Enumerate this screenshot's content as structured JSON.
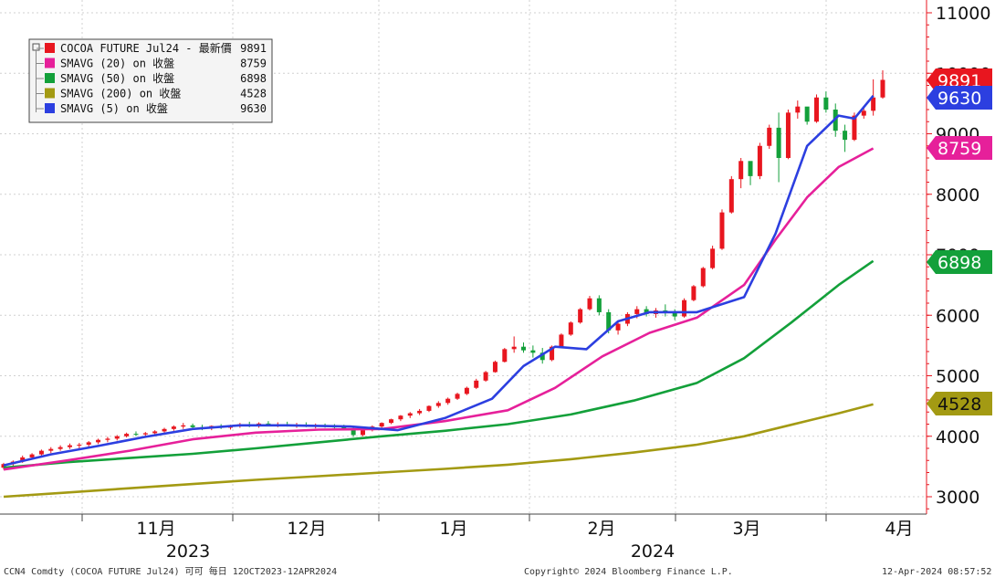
{
  "chart_data": {
    "type": "candlestick",
    "y_axis": {
      "ticks": [
        3000,
        4000,
        5000,
        6000,
        7000,
        8000,
        9000,
        10000,
        11000
      ],
      "range": [
        2700,
        11200
      ],
      "position": "right"
    },
    "x_axis": {
      "months": [
        "11月",
        "12月",
        "1月",
        "2月",
        "3月",
        "4月"
      ],
      "years": [
        "2023",
        "2024"
      ]
    },
    "grid": true,
    "legend": {
      "placement": "top-left",
      "entries": [
        {
          "label": "COCOA FUTURE Jul24 - 最新價",
          "value": "9891",
          "color": "#e8161f"
        },
        {
          "label": "SMAVG (20)  on 收盤",
          "value": "8759",
          "color": "#e6209a"
        },
        {
          "label": "SMAVG (50)  on 收盤",
          "value": "6898",
          "color": "#13a03a"
        },
        {
          "label": "SMAVG (200)  on 收盤",
          "value": "4528",
          "color": "#a39a13"
        },
        {
          "label": "SMAVG (5)  on 收盤",
          "value": "9630",
          "color": "#2c3fe0"
        }
      ]
    },
    "right_tags": [
      {
        "value": 9891,
        "label": "9891",
        "color": "#e8161f",
        "text_dark": false
      },
      {
        "value": 9630,
        "label": "9630",
        "color": "#2c3fe0",
        "text_dark": false
      },
      {
        "value": 8759,
        "label": "8759",
        "color": "#e6209a",
        "text_dark": false
      },
      {
        "value": 6898,
        "label": "6898",
        "color": "#13a03a",
        "text_dark": false
      },
      {
        "value": 4528,
        "label": "4528",
        "color": "#a39a13",
        "text_dark": true
      }
    ],
    "series": [
      {
        "name": "SMAVG (200)",
        "color": "#a39a13",
        "points": [
          [
            0,
            3000
          ],
          [
            20,
            3070
          ],
          [
            40,
            3140
          ],
          [
            60,
            3210
          ],
          [
            80,
            3280
          ],
          [
            100,
            3340
          ],
          [
            120,
            3400
          ],
          [
            140,
            3460
          ],
          [
            160,
            3530
          ],
          [
            180,
            3620
          ],
          [
            200,
            3730
          ],
          [
            220,
            3860
          ],
          [
            235,
            4000
          ],
          [
            250,
            4190
          ],
          [
            265,
            4380
          ],
          [
            276,
            4528
          ]
        ]
      },
      {
        "name": "SMAVG (50)",
        "color": "#13a03a",
        "points": [
          [
            0,
            3480
          ],
          [
            20,
            3570
          ],
          [
            40,
            3640
          ],
          [
            60,
            3710
          ],
          [
            80,
            3800
          ],
          [
            100,
            3900
          ],
          [
            120,
            4000
          ],
          [
            140,
            4090
          ],
          [
            160,
            4200
          ],
          [
            180,
            4360
          ],
          [
            200,
            4590
          ],
          [
            220,
            4880
          ],
          [
            235,
            5290
          ],
          [
            250,
            5880
          ],
          [
            265,
            6500
          ],
          [
            276,
            6898
          ]
        ]
      },
      {
        "name": "SMAVG (20)",
        "color": "#e6209a",
        "points": [
          [
            0,
            3450
          ],
          [
            20,
            3600
          ],
          [
            40,
            3760
          ],
          [
            60,
            3950
          ],
          [
            80,
            4060
          ],
          [
            100,
            4110
          ],
          [
            120,
            4120
          ],
          [
            140,
            4250
          ],
          [
            160,
            4430
          ],
          [
            175,
            4800
          ],
          [
            190,
            5320
          ],
          [
            205,
            5710
          ],
          [
            220,
            5960
          ],
          [
            235,
            6500
          ],
          [
            245,
            7250
          ],
          [
            255,
            7950
          ],
          [
            265,
            8450
          ],
          [
            276,
            8759
          ]
        ]
      },
      {
        "name": "SMAVG (5)",
        "color": "#2c3fe0",
        "points": [
          [
            0,
            3520
          ],
          [
            15,
            3700
          ],
          [
            30,
            3840
          ],
          [
            45,
            3990
          ],
          [
            60,
            4120
          ],
          [
            75,
            4180
          ],
          [
            90,
            4180
          ],
          [
            110,
            4160
          ],
          [
            125,
            4100
          ],
          [
            140,
            4300
          ],
          [
            155,
            4620
          ],
          [
            165,
            5160
          ],
          [
            175,
            5480
          ],
          [
            185,
            5440
          ],
          [
            195,
            5900
          ],
          [
            205,
            6050
          ],
          [
            220,
            6050
          ],
          [
            235,
            6300
          ],
          [
            245,
            7350
          ],
          [
            255,
            8800
          ],
          [
            265,
            9300
          ],
          [
            270,
            9250
          ],
          [
            276,
            9630
          ]
        ]
      }
    ],
    "candles": [
      [
        0,
        3480,
        3560,
        3450,
        3540
      ],
      [
        3,
        3540,
        3600,
        3500,
        3580
      ],
      [
        6,
        3580,
        3680,
        3560,
        3650
      ],
      [
        9,
        3650,
        3720,
        3620,
        3700
      ],
      [
        12,
        3700,
        3780,
        3680,
        3760
      ],
      [
        15,
        3760,
        3820,
        3720,
        3790
      ],
      [
        18,
        3790,
        3850,
        3760,
        3820
      ],
      [
        21,
        3820,
        3880,
        3790,
        3850
      ],
      [
        24,
        3850,
        3890,
        3800,
        3860
      ],
      [
        27,
        3860,
        3920,
        3830,
        3900
      ],
      [
        30,
        3900,
        3960,
        3870,
        3940
      ],
      [
        33,
        3940,
        3990,
        3900,
        3960
      ],
      [
        36,
        3960,
        4020,
        3930,
        4000
      ],
      [
        39,
        4000,
        4060,
        3980,
        4040
      ],
      [
        42,
        4040,
        4080,
        4000,
        4030
      ],
      [
        45,
        4030,
        4070,
        3990,
        4050
      ],
      [
        48,
        4050,
        4100,
        4010,
        4080
      ],
      [
        51,
        4080,
        4140,
        4050,
        4120
      ],
      [
        54,
        4120,
        4180,
        4090,
        4160
      ],
      [
        57,
        4160,
        4220,
        4120,
        4180
      ],
      [
        60,
        4180,
        4210,
        4120,
        4150
      ],
      [
        63,
        4150,
        4190,
        4100,
        4130
      ],
      [
        66,
        4130,
        4180,
        4100,
        4170
      ],
      [
        69,
        4170,
        4200,
        4120,
        4140
      ],
      [
        72,
        4140,
        4190,
        4110,
        4170
      ],
      [
        75,
        4170,
        4220,
        4140,
        4200
      ],
      [
        78,
        4200,
        4240,
        4150,
        4180
      ],
      [
        81,
        4180,
        4230,
        4140,
        4210
      ],
      [
        84,
        4210,
        4250,
        4170,
        4190
      ],
      [
        87,
        4190,
        4230,
        4150,
        4200
      ],
      [
        90,
        4200,
        4240,
        4160,
        4180
      ],
      [
        93,
        4180,
        4220,
        4140,
        4190
      ],
      [
        96,
        4190,
        4230,
        4150,
        4170
      ],
      [
        99,
        4170,
        4210,
        4130,
        4180
      ],
      [
        102,
        4180,
        4210,
        4140,
        4160
      ],
      [
        105,
        4160,
        4200,
        4120,
        4150
      ],
      [
        108,
        4150,
        4190,
        4100,
        4130
      ],
      [
        111,
        4130,
        4150,
        3990,
        4020
      ],
      [
        114,
        4020,
        4120,
        4000,
        4100
      ],
      [
        117,
        4100,
        4180,
        4080,
        4160
      ],
      [
        120,
        4160,
        4230,
        4120,
        4220
      ],
      [
        123,
        4220,
        4290,
        4200,
        4280
      ],
      [
        126,
        4280,
        4350,
        4250,
        4340
      ],
      [
        129,
        4340,
        4400,
        4300,
        4380
      ],
      [
        132,
        4380,
        4450,
        4350,
        4420
      ],
      [
        135,
        4420,
        4510,
        4400,
        4500
      ],
      [
        138,
        4500,
        4580,
        4470,
        4550
      ],
      [
        141,
        4550,
        4640,
        4520,
        4620
      ],
      [
        144,
        4620,
        4720,
        4600,
        4700
      ],
      [
        147,
        4700,
        4820,
        4680,
        4800
      ],
      [
        150,
        4800,
        4950,
        4780,
        4920
      ],
      [
        153,
        4920,
        5080,
        4900,
        5060
      ],
      [
        156,
        5060,
        5250,
        5050,
        5230
      ],
      [
        159,
        5230,
        5460,
        5220,
        5440
      ],
      [
        162,
        5440,
        5650,
        5380,
        5480
      ],
      [
        165,
        5480,
        5550,
        5380,
        5420
      ],
      [
        168,
        5420,
        5500,
        5300,
        5380
      ],
      [
        171,
        5380,
        5460,
        5200,
        5260
      ],
      [
        174,
        5260,
        5500,
        5240,
        5480
      ],
      [
        177,
        5480,
        5700,
        5460,
        5680
      ],
      [
        180,
        5680,
        5900,
        5660,
        5880
      ],
      [
        183,
        5880,
        6120,
        5860,
        6100
      ],
      [
        186,
        6100,
        6320,
        6080,
        6280
      ],
      [
        189,
        6280,
        6330,
        6000,
        6050
      ],
      [
        192,
        6050,
        6100,
        5700,
        5750
      ],
      [
        195,
        5750,
        5900,
        5680,
        5860
      ],
      [
        198,
        5860,
        6050,
        5820,
        6020
      ],
      [
        201,
        6020,
        6150,
        5950,
        6100
      ],
      [
        204,
        6100,
        6150,
        5980,
        6020
      ],
      [
        207,
        6020,
        6120,
        5960,
        6080
      ],
      [
        210,
        6080,
        6180,
        5980,
        6040
      ],
      [
        213,
        6040,
        6100,
        5920,
        5980
      ],
      [
        216,
        5980,
        6280,
        5960,
        6250
      ],
      [
        219,
        6250,
        6500,
        6230,
        6480
      ],
      [
        222,
        6480,
        6800,
        6460,
        6780
      ],
      [
        225,
        6780,
        7150,
        6760,
        7100
      ],
      [
        228,
        7100,
        7750,
        7080,
        7700
      ],
      [
        231,
        7700,
        8300,
        7680,
        8250
      ],
      [
        234,
        8250,
        8600,
        8100,
        8550
      ],
      [
        237,
        8550,
        8500,
        8150,
        8300
      ],
      [
        240,
        8300,
        8850,
        8250,
        8800
      ],
      [
        243,
        8800,
        9150,
        8750,
        9100
      ],
      [
        246,
        9100,
        9350,
        8200,
        8600
      ],
      [
        249,
        8600,
        9400,
        8580,
        9350
      ],
      [
        252,
        9350,
        9550,
        9250,
        9450
      ],
      [
        255,
        9450,
        9380,
        9150,
        9200
      ],
      [
        258,
        9200,
        9650,
        9180,
        9600
      ],
      [
        261,
        9600,
        9700,
        9350,
        9400
      ],
      [
        264,
        9400,
        9500,
        8950,
        9050
      ],
      [
        267,
        9050,
        9150,
        8700,
        8900
      ],
      [
        270,
        8900,
        9350,
        8880,
        9300
      ],
      [
        273,
        9300,
        9450,
        9250,
        9380
      ],
      [
        276,
        9380,
        9900,
        9300,
        9600
      ],
      [
        279,
        9600,
        10050,
        9580,
        9891
      ]
    ]
  },
  "footer": {
    "left": "CCN4 Comdty (COCOA FUTURE    Jul24) 可可  每日 12OCT2023-12APR2024",
    "center": "Copyright© 2024 Bloomberg Finance L.P.",
    "right": "12-Apr-2024 08:57:52"
  }
}
